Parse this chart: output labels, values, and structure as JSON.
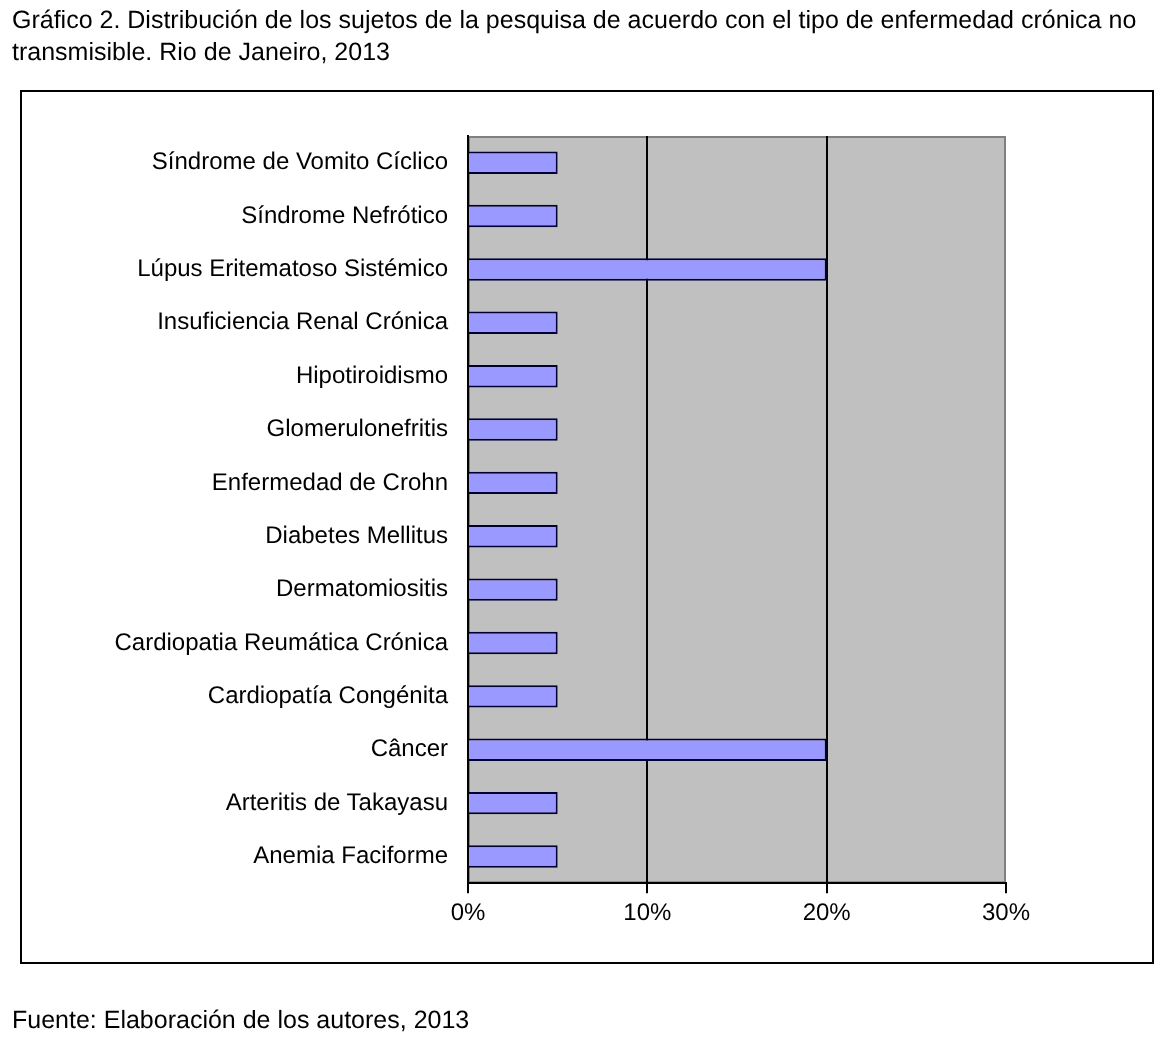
{
  "chart_data": {
    "type": "bar",
    "orientation": "horizontal",
    "title": "Gráfico 2. Distribución de los sujetos de la pesquisa de acuerdo con el tipo de enfermedad crónica no transmisible. Rio de Janeiro, 2013",
    "categories": [
      "Síndrome de Vomito Cíclico",
      "Síndrome Nefrótico",
      "Lúpus Eritematoso Sistémico",
      "Insuficiencia Renal Crónica",
      "Hipotiroidismo",
      "Glomerulonefritis",
      "Enfermedad de Crohn",
      "Diabetes Mellitus",
      "Dermatomiositis",
      "Cardiopatia Reumática Crónica",
      "Cardiopatía Congénita",
      "Câncer",
      "Arteritis de Takayasu",
      "Anemia Faciforme"
    ],
    "values": [
      5,
      5,
      20,
      5,
      5,
      5,
      5,
      5,
      5,
      5,
      5,
      20,
      5,
      5
    ],
    "color": "#9999ff",
    "xlim": [
      0,
      30
    ],
    "xticks": [
      {
        "value": 0,
        "label": "0%"
      },
      {
        "value": 10,
        "label": "10%"
      },
      {
        "value": 20,
        "label": "20%"
      },
      {
        "value": 30,
        "label": "30%"
      }
    ],
    "grid": "x",
    "legend": false,
    "annotations": [
      "Fuente: Elaboración de los autores, 2013"
    ]
  }
}
